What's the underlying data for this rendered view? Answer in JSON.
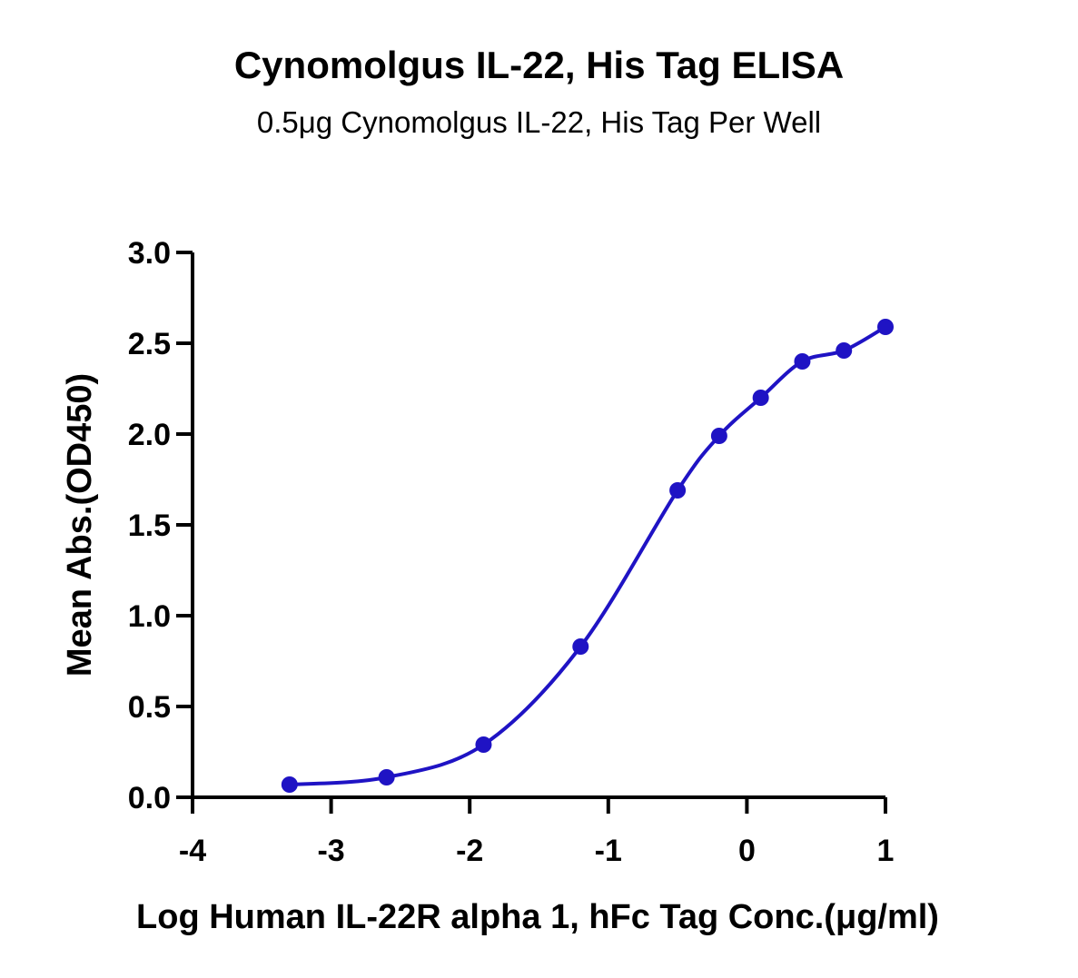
{
  "chart_data": {
    "type": "scatter",
    "title": "Cynomolgus IL-22, His Tag ELISA",
    "subtitle": "0.5μg Cynomolgus IL-22, His Tag Per Well",
    "xlabel": "Log Human IL-22R alpha 1, hFc Tag Conc.(μg/ml)",
    "ylabel": "Mean Abs.(OD450)",
    "xlim": [
      -4,
      1
    ],
    "ylim": [
      0,
      3.0
    ],
    "x_ticks": [
      "-4",
      "-3",
      "-2",
      "-1",
      "0",
      "1"
    ],
    "y_ticks": [
      "0.0",
      "0.5",
      "1.0",
      "1.5",
      "2.0",
      "2.5",
      "3.0"
    ],
    "grid": false,
    "series": [
      {
        "color": "#1f13c4",
        "x": [
          -3.3,
          -2.6,
          -1.9,
          -1.2,
          -0.5,
          -0.2,
          0.1,
          0.4,
          0.7,
          1.0
        ],
        "y": [
          0.07,
          0.11,
          0.29,
          0.83,
          1.69,
          1.99,
          2.2,
          2.4,
          2.46,
          2.59
        ]
      }
    ]
  }
}
